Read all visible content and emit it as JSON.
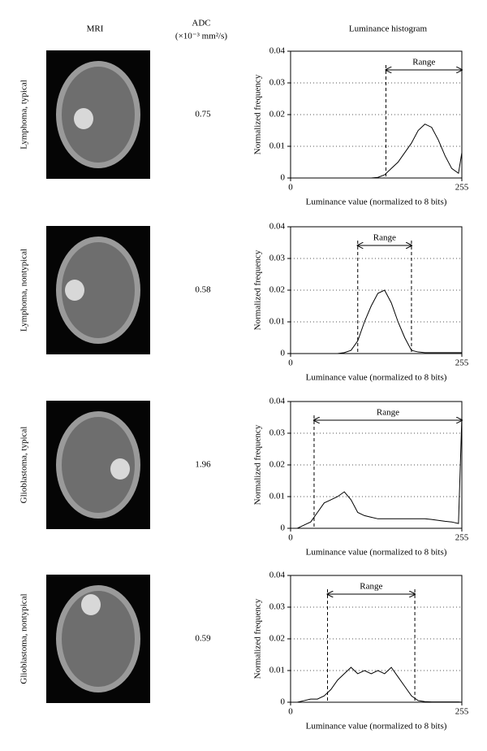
{
  "columns": {
    "mri": "MRI",
    "adc": "ADC",
    "adc_unit": "(×10⁻³ mm²/s)",
    "histogram": "Luminance histogram"
  },
  "rows": [
    {
      "label": "Lymphoma, typical",
      "adc": 0.75
    },
    {
      "label": "Lymphoma, nontypical",
      "adc": 0.58
    },
    {
      "label": "Glioblastoma, typical",
      "adc": 1.96
    },
    {
      "label": "Glioblastoma, nontypical",
      "adc": 0.59
    }
  ],
  "chart_data": [
    {
      "type": "line",
      "x_label": "Luminance value (normalized to 8 bits)",
      "y_label": "Normalized frequency",
      "x": [
        0,
        10,
        20,
        30,
        40,
        50,
        60,
        70,
        80,
        90,
        100,
        110,
        120,
        130,
        140,
        150,
        160,
        170,
        180,
        190,
        200,
        210,
        220,
        230,
        240,
        250,
        255
      ],
      "series": [
        {
          "color": "#000000",
          "values": [
            0,
            0,
            0,
            0,
            0,
            0,
            0,
            0,
            0,
            0,
            0,
            0,
            0,
            0.0002,
            0.001,
            0.003,
            0.005,
            0.008,
            0.011,
            0.015,
            0.017,
            0.016,
            0.012,
            0.007,
            0.003,
            0.0015,
            0.008
          ]
        }
      ],
      "xlim": [
        0,
        255
      ],
      "xticks": [
        0,
        255
      ],
      "ylim": [
        0,
        0.04
      ],
      "yticks": [
        0,
        0.01,
        0.02,
        0.03,
        0.04
      ],
      "grid": true,
      "range": [
        142,
        255
      ],
      "range_label": "Range"
    },
    {
      "type": "line",
      "x_label": "Luminance value (normalized to 8 bits)",
      "y_label": "Normalized frequency",
      "x": [
        0,
        10,
        20,
        30,
        40,
        50,
        60,
        70,
        80,
        90,
        100,
        110,
        120,
        130,
        140,
        150,
        160,
        170,
        180,
        190,
        200,
        210,
        220,
        230,
        240,
        250,
        255
      ],
      "series": [
        {
          "color": "#000000",
          "values": [
            0,
            0,
            0,
            0,
            0,
            0,
            0,
            0,
            0.0003,
            0.001,
            0.004,
            0.01,
            0.015,
            0.019,
            0.02,
            0.016,
            0.01,
            0.005,
            0.001,
            0.0005,
            0.0003,
            0.0003,
            0.0003,
            0.0003,
            0.0003,
            0.0003,
            0.0003
          ]
        }
      ],
      "xlim": [
        0,
        255
      ],
      "xticks": [
        0,
        255
      ],
      "ylim": [
        0,
        0.04
      ],
      "yticks": [
        0,
        0.01,
        0.02,
        0.03,
        0.04
      ],
      "grid": true,
      "range": [
        100,
        180
      ],
      "range_label": "Range"
    },
    {
      "type": "line",
      "x_label": "Luminance value (normalized to 8 bits)",
      "y_label": "Normalized frequency",
      "x": [
        0,
        10,
        20,
        30,
        40,
        50,
        60,
        70,
        80,
        90,
        100,
        110,
        120,
        130,
        140,
        150,
        160,
        170,
        180,
        190,
        200,
        210,
        220,
        230,
        240,
        250,
        255
      ],
      "series": [
        {
          "color": "#000000",
          "values": [
            0,
            0,
            0.001,
            0.002,
            0.005,
            0.008,
            0.009,
            0.01,
            0.0115,
            0.009,
            0.005,
            0.004,
            0.0035,
            0.003,
            0.003,
            0.003,
            0.003,
            0.003,
            0.003,
            0.003,
            0.003,
            0.0028,
            0.0025,
            0.0022,
            0.002,
            0.0015,
            0.035
          ]
        }
      ],
      "xlim": [
        0,
        255
      ],
      "xticks": [
        0,
        255
      ],
      "ylim": [
        0,
        0.04
      ],
      "yticks": [
        0,
        0.01,
        0.02,
        0.03,
        0.04
      ],
      "grid": true,
      "range": [
        35,
        255
      ],
      "range_label": "Range"
    },
    {
      "type": "line",
      "x_label": "Luminance value (normalized to 8 bits)",
      "y_label": "Normalized frequency",
      "x": [
        0,
        10,
        20,
        30,
        40,
        50,
        60,
        70,
        80,
        90,
        100,
        110,
        120,
        130,
        140,
        150,
        160,
        170,
        180,
        190,
        200,
        210,
        220,
        230,
        240,
        250,
        255
      ],
      "series": [
        {
          "color": "#000000",
          "values": [
            0,
            0,
            0.0005,
            0.001,
            0.001,
            0.002,
            0.004,
            0.007,
            0.009,
            0.011,
            0.009,
            0.01,
            0.009,
            0.01,
            0.009,
            0.011,
            0.008,
            0.005,
            0.002,
            0.0005,
            0.0002,
            0.0001,
            0.0001,
            0.0001,
            0.0001,
            0.0001,
            0
          ]
        }
      ],
      "xlim": [
        0,
        255
      ],
      "xticks": [
        0,
        255
      ],
      "ylim": [
        0,
        0.04
      ],
      "yticks": [
        0,
        0.01,
        0.02,
        0.03,
        0.04
      ],
      "grid": true,
      "range": [
        55,
        185
      ],
      "range_label": "Range"
    }
  ]
}
